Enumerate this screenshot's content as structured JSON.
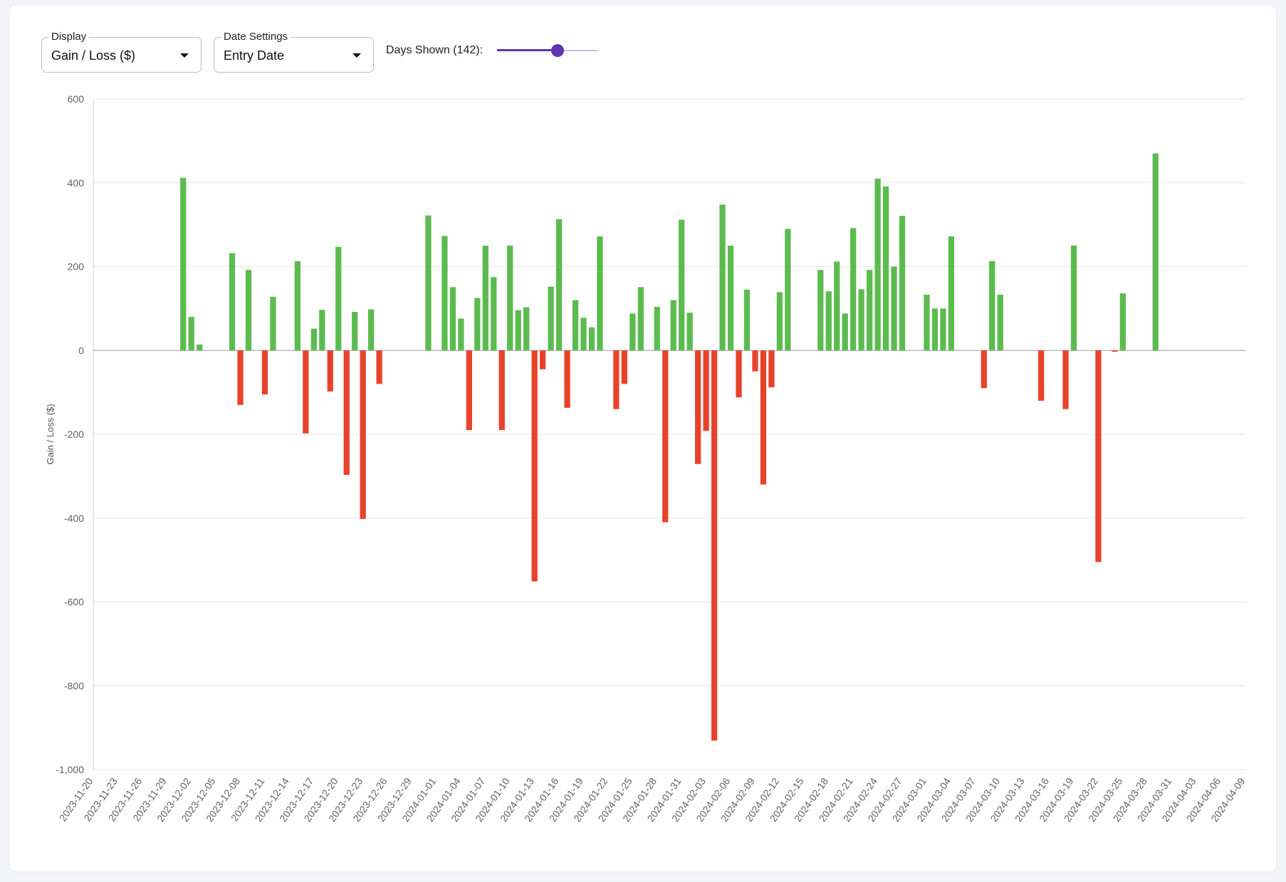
{
  "controls": {
    "display": {
      "legend": "Display",
      "value": "Gain / Loss ($)"
    },
    "date_settings": {
      "legend": "Date Settings",
      "value": "Entry Date"
    },
    "days_shown": {
      "label": "Days Shown (142):",
      "value": 142,
      "fraction": 0.6
    }
  },
  "colors": {
    "positive": "#5cbb4f",
    "negative": "#e8432a",
    "accent": "#5e35b1"
  },
  "chart_data": {
    "type": "bar",
    "ylabel": "Gain / Loss ($)",
    "xlabel": "",
    "ylim": [
      -1000,
      600
    ],
    "yticks": [
      600,
      400,
      200,
      0,
      -200,
      -400,
      -600,
      -800,
      -1000
    ],
    "ytick_labels": [
      "600",
      "400",
      "200",
      "0",
      "-200",
      "-400",
      "-600",
      "-800",
      "-1,000"
    ],
    "x_range": [
      "2023-11-20",
      "2024-04-09"
    ],
    "xtick_labels": [
      "2023-11-20",
      "2023-11-23",
      "2023-11-26",
      "2023-11-29",
      "2023-12-02",
      "2023-12-05",
      "2023-12-08",
      "2023-12-11",
      "2023-12-14",
      "2023-12-17",
      "2023-12-20",
      "2023-12-23",
      "2023-12-26",
      "2023-12-29",
      "2024-01-01",
      "2024-01-04",
      "2024-01-07",
      "2024-01-10",
      "2024-01-13",
      "2024-01-16",
      "2024-01-19",
      "2024-01-22",
      "2024-01-25",
      "2024-01-28",
      "2024-01-31",
      "2024-02-03",
      "2024-02-06",
      "2024-02-09",
      "2024-02-12",
      "2024-02-15",
      "2024-02-18",
      "2024-02-21",
      "2024-02-24",
      "2024-02-27",
      "2024-03-01",
      "2024-03-04",
      "2024-03-07",
      "2024-03-10",
      "2024-03-13",
      "2024-03-16",
      "2024-03-19",
      "2024-03-22",
      "2024-03-25",
      "2024-03-28",
      "2024-03-31",
      "2024-04-03",
      "2024-04-06",
      "2024-04-09"
    ],
    "grid": true,
    "legend": "none",
    "points": [
      {
        "date": "2023-12-01",
        "value": 412
      },
      {
        "date": "2023-12-02",
        "value": 80
      },
      {
        "date": "2023-12-03",
        "value": 14
      },
      {
        "date": "2023-12-07",
        "value": 232
      },
      {
        "date": "2023-12-08",
        "value": -130
      },
      {
        "date": "2023-12-09",
        "value": 192
      },
      {
        "date": "2023-12-11",
        "value": -105
      },
      {
        "date": "2023-12-12",
        "value": 128
      },
      {
        "date": "2023-12-15",
        "value": 213
      },
      {
        "date": "2023-12-16",
        "value": -198
      },
      {
        "date": "2023-12-17",
        "value": 52
      },
      {
        "date": "2023-12-18",
        "value": 97
      },
      {
        "date": "2023-12-19",
        "value": -98
      },
      {
        "date": "2023-12-20",
        "value": 247
      },
      {
        "date": "2023-12-21",
        "value": -297
      },
      {
        "date": "2023-12-22",
        "value": 92
      },
      {
        "date": "2023-12-23",
        "value": -402
      },
      {
        "date": "2023-12-24",
        "value": 98
      },
      {
        "date": "2023-12-25",
        "value": -80
      },
      {
        "date": "2023-12-31",
        "value": 322
      },
      {
        "date": "2024-01-02",
        "value": 273
      },
      {
        "date": "2024-01-03",
        "value": 151
      },
      {
        "date": "2024-01-04",
        "value": 76
      },
      {
        "date": "2024-01-05",
        "value": -190
      },
      {
        "date": "2024-01-06",
        "value": 125
      },
      {
        "date": "2024-01-07",
        "value": 250
      },
      {
        "date": "2024-01-08",
        "value": 175
      },
      {
        "date": "2024-01-09",
        "value": -190
      },
      {
        "date": "2024-01-10",
        "value": 250
      },
      {
        "date": "2024-01-11",
        "value": 96
      },
      {
        "date": "2024-01-12",
        "value": 103
      },
      {
        "date": "2024-01-13",
        "value": -551
      },
      {
        "date": "2024-01-14",
        "value": -45
      },
      {
        "date": "2024-01-15",
        "value": 152
      },
      {
        "date": "2024-01-16",
        "value": 313
      },
      {
        "date": "2024-01-17",
        "value": -137
      },
      {
        "date": "2024-01-18",
        "value": 120
      },
      {
        "date": "2024-01-19",
        "value": 78
      },
      {
        "date": "2024-01-20",
        "value": 55
      },
      {
        "date": "2024-01-21",
        "value": 272
      },
      {
        "date": "2024-01-23",
        "value": -140
      },
      {
        "date": "2024-01-24",
        "value": -80
      },
      {
        "date": "2024-01-25",
        "value": 88
      },
      {
        "date": "2024-01-26",
        "value": 151
      },
      {
        "date": "2024-01-28",
        "value": 104
      },
      {
        "date": "2024-01-29",
        "value": -410
      },
      {
        "date": "2024-01-30",
        "value": 120
      },
      {
        "date": "2024-01-31",
        "value": 312
      },
      {
        "date": "2024-02-01",
        "value": 90
      },
      {
        "date": "2024-02-02",
        "value": -271
      },
      {
        "date": "2024-02-03",
        "value": -192
      },
      {
        "date": "2024-02-04",
        "value": -931
      },
      {
        "date": "2024-02-05",
        "value": 348
      },
      {
        "date": "2024-02-06",
        "value": 250
      },
      {
        "date": "2024-02-07",
        "value": -112
      },
      {
        "date": "2024-02-08",
        "value": 145
      },
      {
        "date": "2024-02-09",
        "value": -50
      },
      {
        "date": "2024-02-10",
        "value": -320
      },
      {
        "date": "2024-02-11",
        "value": -88
      },
      {
        "date": "2024-02-12",
        "value": 139
      },
      {
        "date": "2024-02-13",
        "value": 290
      },
      {
        "date": "2024-02-17",
        "value": 192
      },
      {
        "date": "2024-02-18",
        "value": 141
      },
      {
        "date": "2024-02-19",
        "value": 212
      },
      {
        "date": "2024-02-20",
        "value": 88
      },
      {
        "date": "2024-02-21",
        "value": 292
      },
      {
        "date": "2024-02-22",
        "value": 146
      },
      {
        "date": "2024-02-23",
        "value": 192
      },
      {
        "date": "2024-02-24",
        "value": 410
      },
      {
        "date": "2024-02-25",
        "value": 391
      },
      {
        "date": "2024-02-26",
        "value": 200
      },
      {
        "date": "2024-02-27",
        "value": 321
      },
      {
        "date": "2024-03-01",
        "value": 133
      },
      {
        "date": "2024-03-02",
        "value": 100
      },
      {
        "date": "2024-03-03",
        "value": 100
      },
      {
        "date": "2024-03-04",
        "value": 272
      },
      {
        "date": "2024-03-08",
        "value": -90
      },
      {
        "date": "2024-03-09",
        "value": 213
      },
      {
        "date": "2024-03-10",
        "value": 133
      },
      {
        "date": "2024-03-15",
        "value": -120
      },
      {
        "date": "2024-03-18",
        "value": -140
      },
      {
        "date": "2024-03-19",
        "value": 250
      },
      {
        "date": "2024-03-22",
        "value": -505
      },
      {
        "date": "2024-03-24",
        "value": -3
      },
      {
        "date": "2024-03-25",
        "value": 136
      },
      {
        "date": "2024-03-29",
        "value": 470
      }
    ]
  }
}
